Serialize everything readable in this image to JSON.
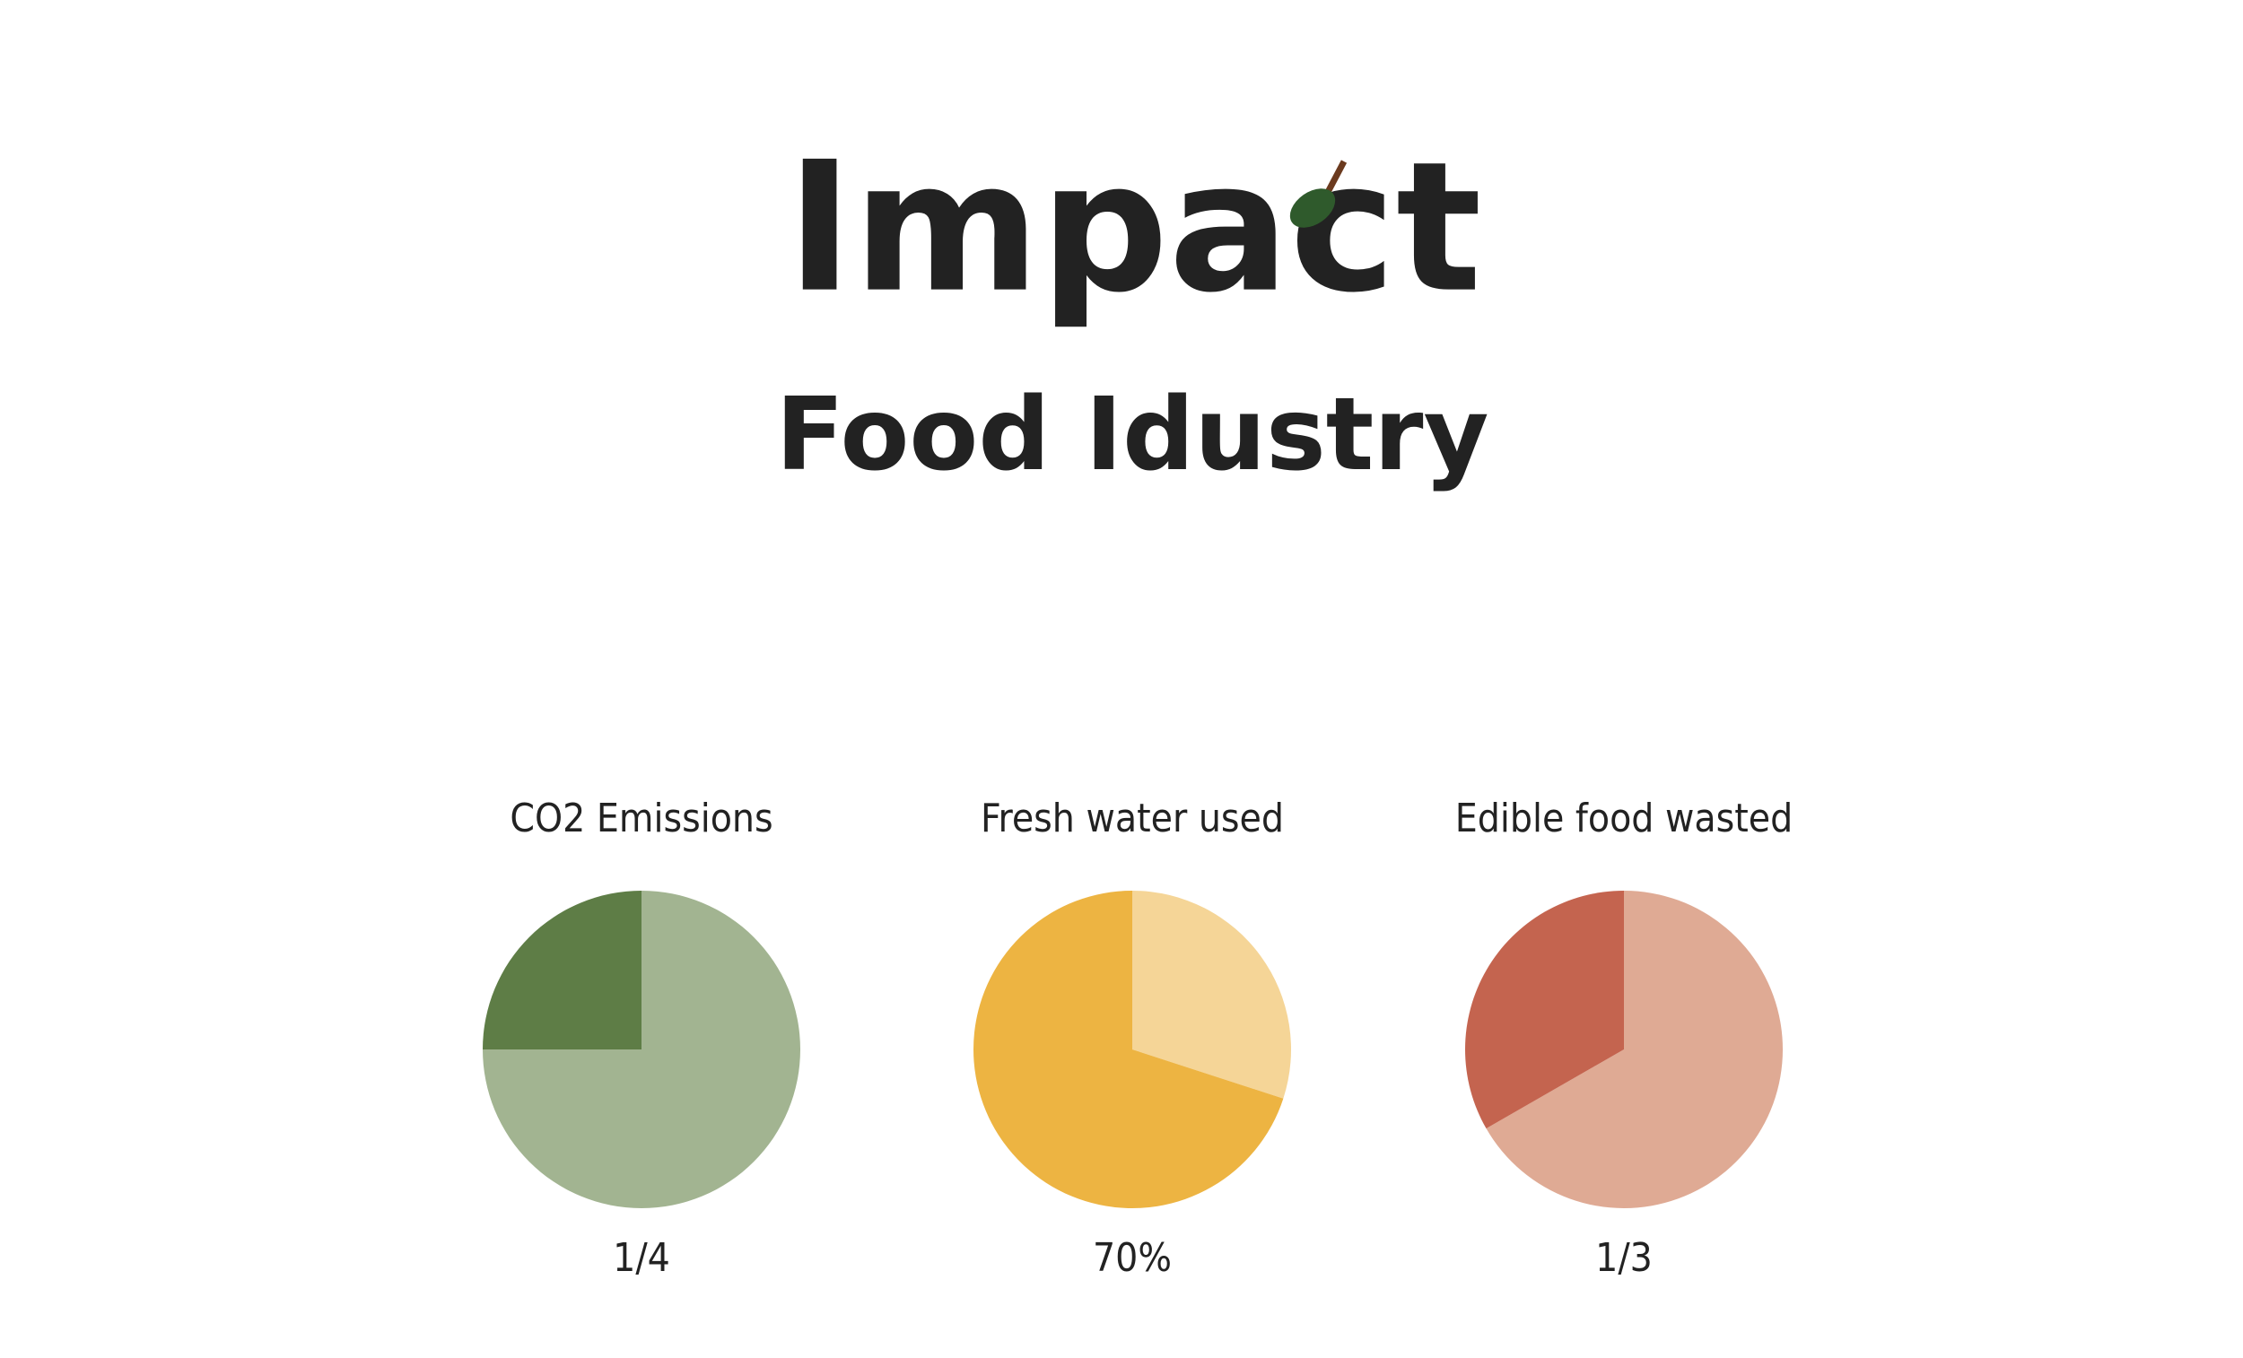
{
  "header": {
    "title": "Impact",
    "subtitle": "Food Idustry"
  },
  "chart_data": [
    {
      "type": "pie",
      "title": "CO2 Emissions",
      "values": [
        75,
        25
      ],
      "value_labels": [
        null,
        "1/4"
      ],
      "colors": [
        "#a2b491",
        "#5e7d46"
      ]
    },
    {
      "type": "pie",
      "title": "Fresh water used",
      "values": [
        30,
        70
      ],
      "value_labels": [
        null,
        "70%"
      ],
      "colors": [
        "#f5d597",
        "#edb442"
      ]
    },
    {
      "type": "pie",
      "title": "Edible food wasted",
      "values": [
        66.7,
        33.3
      ],
      "value_labels": [
        null,
        "1/3"
      ],
      "colors": [
        "#dfaa94",
        "#c4644f"
      ]
    }
  ]
}
